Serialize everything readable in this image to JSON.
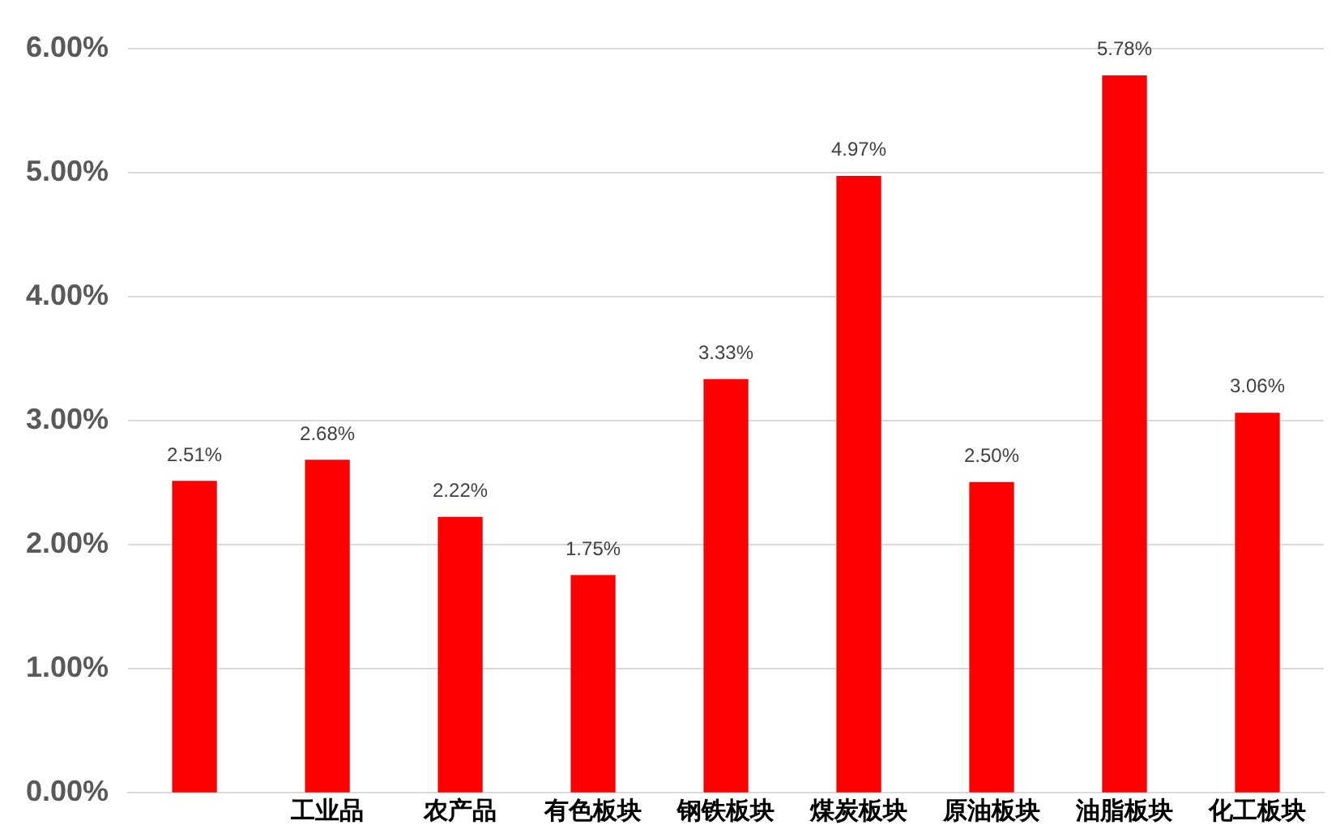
{
  "chart_data": {
    "type": "bar",
    "categories": [
      null,
      "工业品",
      "农产品",
      "有色板块",
      "钢铁板块",
      "煤炭板块",
      "原油板块",
      "油脂板块",
      "化工板块"
    ],
    "values": [
      2.51,
      2.68,
      2.22,
      1.75,
      3.33,
      4.97,
      2.5,
      5.78,
      3.06
    ],
    "value_labels": [
      "2.51%",
      "2.68%",
      "2.22%",
      "1.75%",
      "3.33%",
      "4.97%",
      "2.50%",
      "5.78%",
      "3.06%"
    ],
    "color": "#ff0000",
    "ylim": [
      0,
      6
    ],
    "yticks": [
      {
        "value": 0,
        "label": "0.00%"
      },
      {
        "value": 1,
        "label": "1.00%"
      },
      {
        "value": 2,
        "label": "2.00%"
      },
      {
        "value": 3,
        "label": "3.00%"
      },
      {
        "value": 4,
        "label": "4.00%"
      },
      {
        "value": 5,
        "label": "5.00%"
      },
      {
        "value": 6,
        "label": "6.00%"
      }
    ],
    "grid": "y",
    "legend": false
  }
}
